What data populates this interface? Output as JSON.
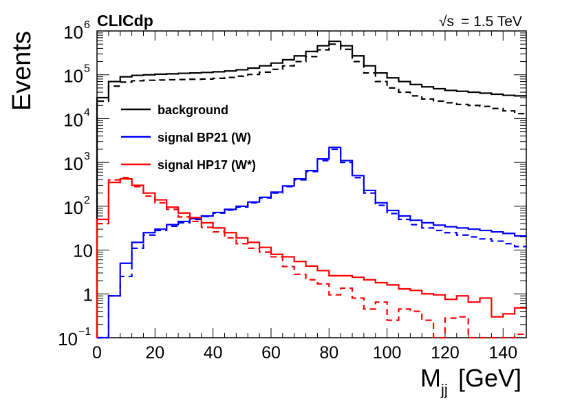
{
  "chart_data": {
    "type": "histogram-step",
    "title": "CLICdp",
    "energy_prefix": "√s",
    "energy_label": "= 1.5 TeV",
    "xlabel": "M",
    "xlabel_sub": "jj",
    "xlabel_unit": "[GeV]",
    "ylabel": "Events",
    "y_scale": "log",
    "xlim": [
      0,
      148
    ],
    "ylim": [
      0.1,
      1000000
    ],
    "bin_width": 4,
    "x_ticks": [
      "0",
      "20",
      "40",
      "60",
      "80",
      "100",
      "120",
      "140"
    ],
    "y_tick_values": [
      0.1,
      1,
      10,
      100,
      1000,
      10000,
      100000,
      1000000
    ],
    "y_ticks": [
      {
        "base": "10",
        "exp": "−1"
      },
      {
        "base": "1",
        "exp": ""
      },
      {
        "base": "10",
        "exp": ""
      },
      {
        "base": "10",
        "exp": "2"
      },
      {
        "base": "10",
        "exp": "3"
      },
      {
        "base": "10",
        "exp": "4"
      },
      {
        "base": "10",
        "exp": "5"
      },
      {
        "base": "10",
        "exp": "6"
      }
    ],
    "series": [
      {
        "name": "background",
        "color": "#000000",
        "style": "solid",
        "x_edges": [
          0,
          4,
          8,
          12,
          16,
          20,
          24,
          28,
          32,
          36,
          40,
          44,
          48,
          52,
          56,
          60,
          64,
          68,
          72,
          76,
          80,
          84,
          88,
          92,
          96,
          100,
          104,
          108,
          112,
          116,
          120,
          124,
          128,
          132,
          136,
          140,
          144,
          148
        ],
        "values": [
          30000,
          70000,
          90000,
          97000,
          100000,
          103000,
          105000,
          108000,
          110000,
          113000,
          117000,
          122000,
          130000,
          142000,
          160000,
          185000,
          220000,
          270000,
          340000,
          460000,
          580000,
          460000,
          270000,
          160000,
          110000,
          85000,
          70000,
          60000,
          53000,
          48000,
          44000,
          42000,
          40000,
          38000,
          36000,
          34000,
          33000
        ]
      },
      {
        "name": "background",
        "color": "#000000",
        "style": "dashed",
        "values": [
          25000,
          55000,
          68000,
          73000,
          75000,
          76000,
          77000,
          78000,
          79000,
          80000,
          83000,
          87000,
          93000,
          102000,
          115000,
          133000,
          160000,
          200000,
          260000,
          370000,
          500000,
          380000,
          200000,
          110000,
          70000,
          50000,
          40000,
          33000,
          28000,
          25000,
          23000,
          21000,
          20000,
          19000,
          17000,
          15000,
          13000
        ]
      },
      {
        "name": "signal BP21 (W)",
        "color": "#0000ff",
        "style": "solid",
        "values": [
          0.07,
          0.9,
          5,
          15,
          25,
          30,
          38,
          45,
          52,
          60,
          72,
          85,
          100,
          125,
          160,
          210,
          290,
          420,
          650,
          1200,
          2200,
          1100,
          500,
          230,
          120,
          80,
          60,
          48,
          42,
          37,
          34,
          32,
          30,
          28,
          26,
          24,
          21
        ]
      },
      {
        "name": "signal BP21 (W)",
        "color": "#0000ff",
        "style": "dashed",
        "values": [
          0.06,
          0.9,
          2.5,
          11,
          22,
          28,
          35,
          42,
          50,
          58,
          70,
          82,
          96,
          120,
          155,
          200,
          280,
          400,
          620,
          1100,
          2000,
          1000,
          450,
          200,
          105,
          68,
          50,
          38,
          32,
          28,
          25,
          22,
          20,
          18,
          16,
          14,
          12
        ]
      },
      {
        "name": "signal HP17 (W*)",
        "color": "#ff0000",
        "style": "solid",
        "values": [
          50,
          350,
          420,
          300,
          200,
          140,
          95,
          70,
          55,
          42,
          32,
          25,
          19,
          15,
          11.5,
          8,
          7,
          5.5,
          4.3,
          3.4,
          2.6,
          2.6,
          2.4,
          2.1,
          1.8,
          1.6,
          1.3,
          1.2,
          1.0,
          0.95,
          0.75,
          0.9,
          0.65,
          0.8,
          0.3,
          0.35,
          0.48
        ]
      },
      {
        "name": "signal HP17 (W*)",
        "color": "#ff0000",
        "style": "dashed",
        "values": [
          40,
          400,
          450,
          280,
          170,
          120,
          85,
          57,
          45,
          33,
          26,
          19,
          14,
          11,
          9,
          7,
          4.2,
          2.8,
          2.1,
          1.7,
          0.95,
          1.35,
          0.8,
          0.45,
          0.65,
          0.25,
          0.45,
          0.4,
          0.25,
          0.09,
          0.28,
          0.3,
          0.08,
          0.1,
          0.1,
          0.07,
          0.12
        ]
      }
    ],
    "legend": {
      "placement": "upper-left",
      "entries": [
        {
          "label": "background",
          "color": "#000000"
        },
        {
          "label": "signal BP21 (W)",
          "color": "#0000ff"
        },
        {
          "label": "signal HP17 (W*)",
          "color": "#ff0000"
        }
      ]
    }
  }
}
